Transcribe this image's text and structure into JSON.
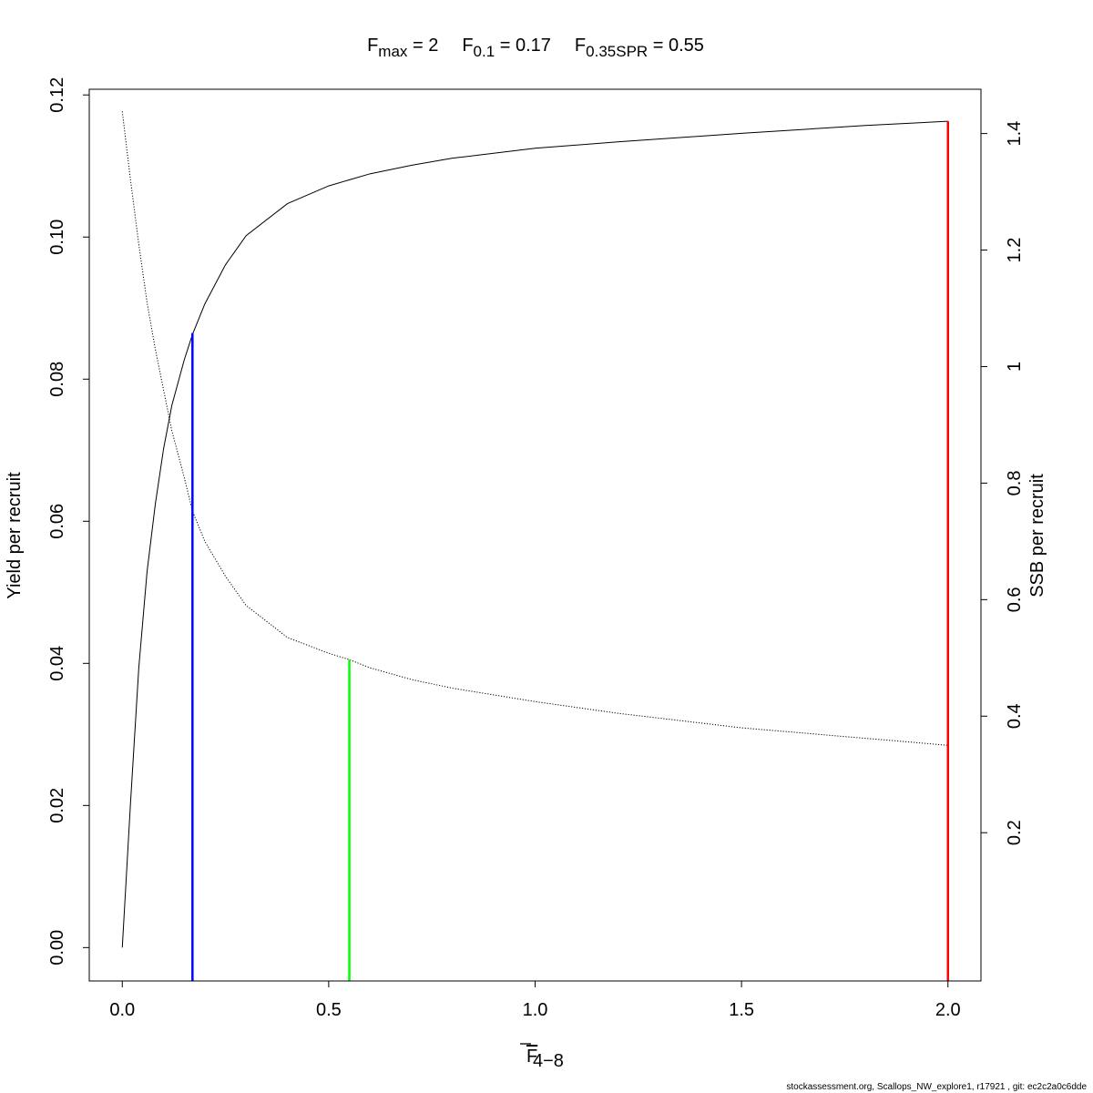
{
  "chart_data": {
    "type": "line",
    "title": {
      "parts": [
        {
          "main": "F",
          "sub": "max",
          "eq": "2"
        },
        {
          "main": "F",
          "sub": "0.1",
          "eq": "0.17"
        },
        {
          "main": "F",
          "sub": "0.35SPR",
          "eq": "0.55"
        }
      ]
    },
    "xlabel": {
      "main": "F",
      "sub": "4−8",
      "overline": true
    },
    "ylabel_left": "Yield per recruit",
    "ylabel_right": "SSB per recruit",
    "xlim": [
      -0.08,
      2.08
    ],
    "ylim_left": [
      -0.0047,
      0.1208
    ],
    "ylim_right": [
      -0.0545,
      1.476
    ],
    "x_ticks": [
      0.0,
      0.5,
      1.0,
      1.5,
      2.0
    ],
    "x_tick_labels": [
      "0.0",
      "0.5",
      "1.0",
      "1.5",
      "2.0"
    ],
    "y_left_ticks": [
      0.0,
      0.02,
      0.04,
      0.06,
      0.08,
      0.1,
      0.12
    ],
    "y_left_tick_labels": [
      "0.00",
      "0.02",
      "0.04",
      "0.06",
      "0.08",
      "0.10",
      "0.12"
    ],
    "y_right_ticks": [
      0.2,
      0.4,
      0.6,
      0.8,
      1.0,
      1.2,
      1.4
    ],
    "y_right_tick_labels": [
      "0.2",
      "0.4",
      "0.6",
      "0.8",
      "1",
      "1.2",
      "1.4"
    ],
    "series": [
      {
        "name": "Yield per recruit",
        "axis": "left",
        "style": "solid",
        "color": "#000000",
        "x": [
          0.0,
          0.02,
          0.04,
          0.06,
          0.08,
          0.1,
          0.12,
          0.15,
          0.17,
          0.2,
          0.25,
          0.3,
          0.4,
          0.5,
          0.6,
          0.7,
          0.8,
          1.0,
          1.2,
          1.5,
          1.8,
          2.0
        ],
        "y": [
          0.0,
          0.0204,
          0.0394,
          0.0529,
          0.0624,
          0.0702,
          0.0763,
          0.0827,
          0.0863,
          0.0906,
          0.0961,
          0.1002,
          0.1047,
          0.1072,
          0.1089,
          0.1101,
          0.1111,
          0.1125,
          0.1134,
          0.1146,
          0.1157,
          0.1163
        ]
      },
      {
        "name": "SSB per recruit",
        "axis": "right",
        "style": "dotted",
        "color": "#000000",
        "x": [
          0.0,
          0.02,
          0.04,
          0.06,
          0.08,
          0.1,
          0.12,
          0.15,
          0.17,
          0.2,
          0.25,
          0.3,
          0.4,
          0.5,
          0.55,
          0.6,
          0.7,
          0.8,
          1.0,
          1.2,
          1.5,
          1.8,
          2.0
        ],
        "y": [
          1.438,
          1.32,
          1.21,
          1.11,
          1.03,
          0.96,
          0.89,
          0.81,
          0.752,
          0.7,
          0.64,
          0.59,
          0.535,
          0.508,
          0.497,
          0.483,
          0.463,
          0.448,
          0.425,
          0.405,
          0.38,
          0.362,
          0.35
        ]
      }
    ],
    "reference_lines": [
      {
        "name": "F0.1",
        "x": 0.17,
        "color": "#0000ff",
        "y_top_axis": "left",
        "y_top": 0.0865
      },
      {
        "name": "F0.35SPR",
        "x": 0.55,
        "color": "#00ff00",
        "y_top_axis": "right",
        "y_top": 0.497
      },
      {
        "name": "Fmax",
        "x": 2.0,
        "color": "#ff0000",
        "y_top_axis": "left",
        "y_top": 0.1163
      }
    ],
    "grid": false,
    "legend": "none"
  },
  "footer": {
    "text": "stockassessment.org, Scallops_NW_explore1, r17921 , git: ec2c2a0c6dde"
  }
}
